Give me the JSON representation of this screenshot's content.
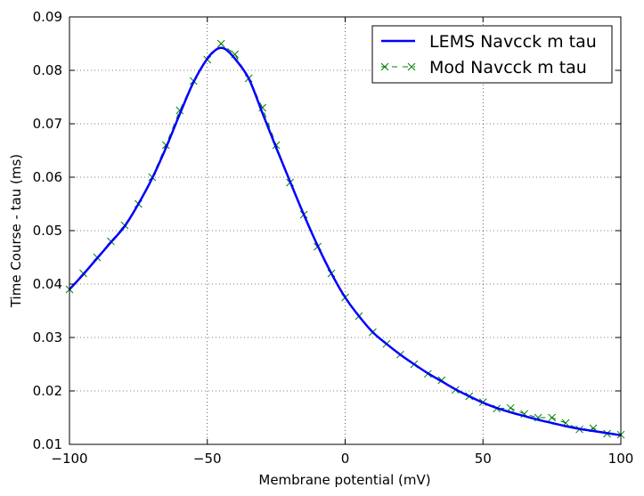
{
  "chart_data": {
    "type": "line",
    "xlabel": "Membrane potential (mV)",
    "ylabel": "Time Course - tau (ms)",
    "xlim": [
      -100,
      100
    ],
    "ylim": [
      0.01,
      0.09
    ],
    "xticks": [
      -100,
      -50,
      0,
      50,
      100
    ],
    "xtick_labels": [
      "−100",
      "−50",
      "0",
      "50",
      "100"
    ],
    "yticks": [
      0.01,
      0.02,
      0.03,
      0.04,
      0.05,
      0.06,
      0.07,
      0.08,
      0.09
    ],
    "ytick_labels": [
      "0.01",
      "0.02",
      "0.03",
      "0.04",
      "0.05",
      "0.06",
      "0.07",
      "0.08",
      "0.09"
    ],
    "grid": true,
    "legend_position": "top-right",
    "series": [
      {
        "name": "LEMS Navcck m tau",
        "style": "solid-line",
        "color": "#0000ff",
        "x": [
          -100,
          -95,
          -90,
          -85,
          -80,
          -75,
          -70,
          -65,
          -60,
          -55,
          -50,
          -47,
          -45,
          -43,
          -40,
          -35,
          -30,
          -25,
          -20,
          -15,
          -10,
          -5,
          0,
          5,
          10,
          15,
          20,
          25,
          30,
          35,
          40,
          45,
          50,
          55,
          60,
          65,
          70,
          75,
          80,
          85,
          90,
          95,
          100
        ],
        "y": [
          0.039,
          0.0418,
          0.0448,
          0.0478,
          0.0508,
          0.055,
          0.0598,
          0.0655,
          0.0718,
          0.0778,
          0.0822,
          0.0838,
          0.0842,
          0.0838,
          0.0822,
          0.0785,
          0.072,
          0.0655,
          0.0592,
          0.053,
          0.0472,
          0.042,
          0.0375,
          0.034,
          0.031,
          0.0288,
          0.0268,
          0.025,
          0.0233,
          0.0218,
          0.0203,
          0.019,
          0.0178,
          0.0168,
          0.016,
          0.0153,
          0.0146,
          0.014,
          0.0134,
          0.0129,
          0.0125,
          0.0121,
          0.0117
        ]
      },
      {
        "name": "Mod Navcck m tau",
        "style": "dashed-x-markers",
        "color": "#008000",
        "x": [
          -100,
          -95,
          -90,
          -85,
          -80,
          -75,
          -70,
          -65,
          -60,
          -55,
          -50,
          -45,
          -40,
          -35,
          -30,
          -25,
          -20,
          -15,
          -10,
          -5,
          0,
          5,
          10,
          15,
          20,
          25,
          30,
          35,
          40,
          45,
          50,
          55,
          60,
          65,
          70,
          75,
          80,
          85,
          90,
          95,
          100
        ],
        "y": [
          0.039,
          0.042,
          0.045,
          0.048,
          0.051,
          0.055,
          0.06,
          0.066,
          0.0725,
          0.078,
          0.082,
          0.085,
          0.083,
          0.0785,
          0.073,
          0.066,
          0.059,
          0.053,
          0.047,
          0.042,
          0.0375,
          0.034,
          0.031,
          0.0288,
          0.0268,
          0.025,
          0.0232,
          0.022,
          0.0202,
          0.019,
          0.0179,
          0.0167,
          0.0168,
          0.0157,
          0.015,
          0.015,
          0.014,
          0.0128,
          0.013,
          0.012,
          0.0118
        ]
      }
    ]
  }
}
